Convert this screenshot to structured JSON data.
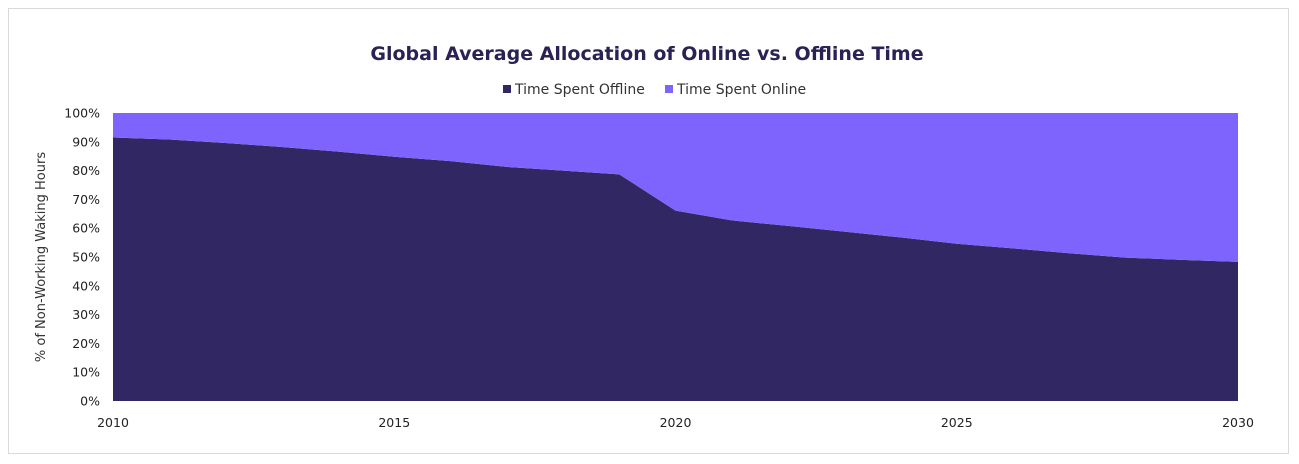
{
  "chart_data": {
    "type": "area",
    "stacked": true,
    "percent_stacked": true,
    "title": "Global Average Allocation of Online vs. Offline Time",
    "ylabel": "% of Non-Working Waking Hours",
    "xlabel": "",
    "x": [
      2010,
      2011,
      2012,
      2013,
      2014,
      2015,
      2016,
      2017,
      2018,
      2019,
      2020,
      2021,
      2022,
      2023,
      2024,
      2025,
      2026,
      2027,
      2028,
      2029,
      2030
    ],
    "xlim": [
      2010,
      2030
    ],
    "xticks": [
      "2010",
      "2015",
      "2020",
      "2025",
      "2030"
    ],
    "ylim": [
      0,
      100
    ],
    "yticks": [
      "0%",
      "10%",
      "20%",
      "30%",
      "40%",
      "50%",
      "60%",
      "70%",
      "80%",
      "90%",
      "100%"
    ],
    "legend_position": "top-center",
    "grid": false,
    "series": [
      {
        "name": "Time Spent Offline",
        "color": "#312863",
        "values": [
          91.5,
          90.8,
          89.6,
          88.2,
          86.6,
          84.8,
          83.3,
          81.3,
          80.0,
          78.7,
          66.1,
          62.7,
          60.8,
          58.8,
          56.8,
          54.6,
          53.0,
          51.3,
          49.8,
          49.0,
          48.3
        ]
      },
      {
        "name": "Time Spent Online",
        "color": "#7f63fd",
        "values": [
          8.5,
          9.2,
          10.4,
          11.8,
          13.4,
          15.2,
          16.7,
          18.7,
          20.0,
          21.3,
          33.9,
          37.3,
          39.2,
          41.2,
          43.2,
          45.4,
          47.0,
          48.7,
          50.2,
          51.0,
          51.7
        ]
      }
    ]
  }
}
